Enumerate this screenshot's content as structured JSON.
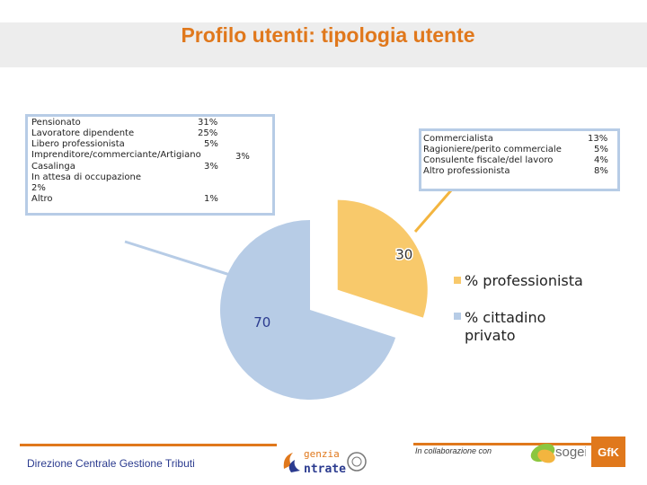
{
  "title": "Profilo utenti: tipologia utente",
  "chart_data": {
    "type": "pie",
    "categories": [
      "% professionista",
      "% cittadino privato"
    ],
    "values": [
      30,
      70
    ],
    "colors": [
      "#f8c96b",
      "#b7cce6"
    ],
    "exploded": "% professionista",
    "slice_labels": [
      "30",
      "70"
    ],
    "legend": {
      "placement": "right",
      "items": [
        "% professionista",
        "% cittadino\nprivato"
      ]
    }
  },
  "breakdown_privato": {
    "rows": [
      {
        "label": "Pensionato",
        "value": "31%"
      },
      {
        "label": "Lavoratore dipendente",
        "value": "25%"
      },
      {
        "label": "Libero professionista",
        "value": "5%"
      },
      {
        "label": "Imprenditore/commerciante/Artigiano",
        "value": "3%"
      },
      {
        "label": "Casalinga",
        "value": "3%"
      },
      {
        "label": "In attesa di occupazione",
        "value": ""
      },
      {
        "label": "2%",
        "value": ""
      },
      {
        "label": "Altro",
        "value": "1%"
      }
    ]
  },
  "breakdown_professionista": {
    "rows": [
      {
        "label": "Commercialista",
        "value": "13%"
      },
      {
        "label": "Ragioniere/perito commerciale",
        "value": "5%"
      },
      {
        "label": "Consulente fiscale/del lavoro",
        "value": "4%"
      },
      {
        "label": "Altro professionista",
        "value": "8%"
      }
    ]
  },
  "footer": {
    "left_text": "Direzione Centrale Gestione Tributi",
    "collab_text": "In collaborazione con",
    "logo_agenzia_line1": "genzia",
    "logo_agenzia_line2": "ntrate",
    "logo_sogei": "sogei",
    "logo_gfk": "GfK"
  }
}
